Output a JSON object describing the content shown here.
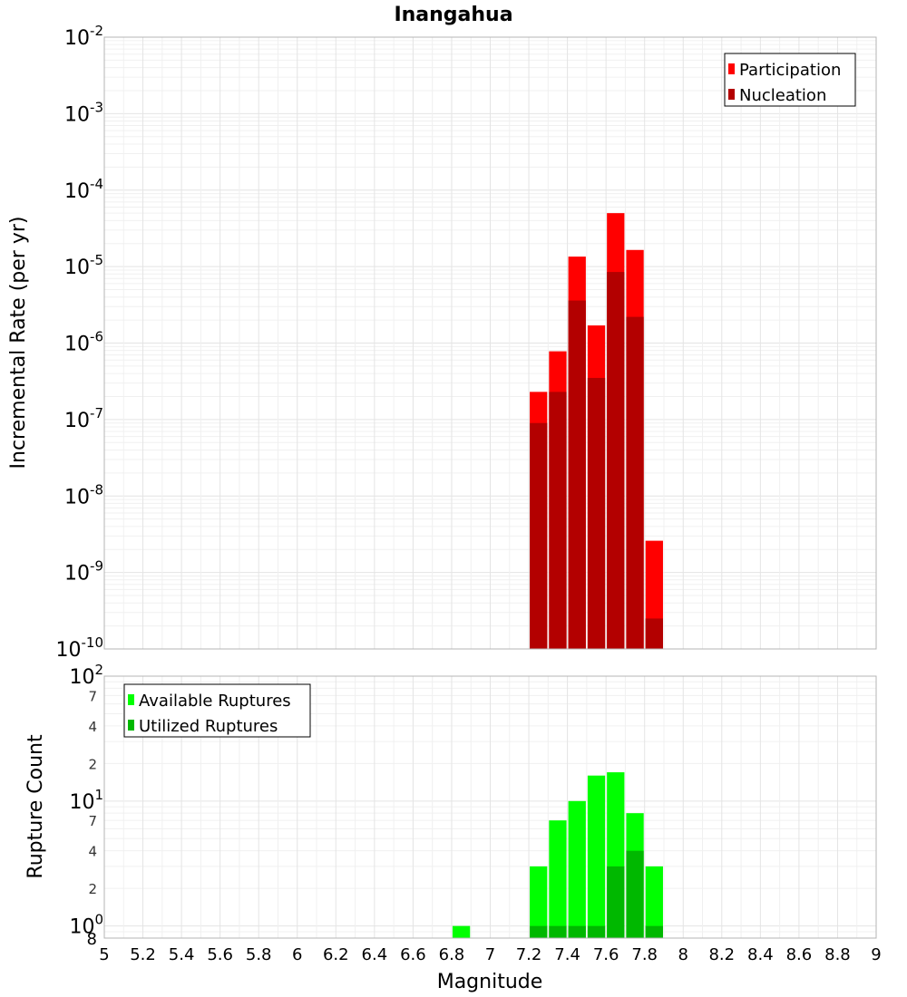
{
  "chart_data": [
    {
      "type": "bar",
      "title": "Inangahua",
      "xlabel": "",
      "ylabel": "Incremental Rate (per yr)",
      "yscale": "log",
      "xlim": [
        5,
        9
      ],
      "ylim": [
        1e-10,
        0.01
      ],
      "grid": true,
      "legend_position": "top-right",
      "bin_width": 0.1,
      "y_tick_labels": [
        {
          "base": "10",
          "exp": "-10"
        },
        {
          "base": "10",
          "exp": "-9"
        },
        {
          "base": "10",
          "exp": "-8"
        },
        {
          "base": "10",
          "exp": "-7"
        },
        {
          "base": "10",
          "exp": "-6"
        },
        {
          "base": "10",
          "exp": "-5"
        },
        {
          "base": "10",
          "exp": "-4"
        },
        {
          "base": "10",
          "exp": "-3"
        },
        {
          "base": "10",
          "exp": "-2"
        }
      ],
      "series": [
        {
          "name": "Participation",
          "color": "#ff0000",
          "x": [
            7.25,
            7.35,
            7.45,
            7.55,
            7.65,
            7.75,
            7.85
          ],
          "values": [
            2.3e-07,
            7.8e-07,
            1.35e-05,
            1.7e-06,
            5e-05,
            1.65e-05,
            2.6e-09
          ]
        },
        {
          "name": "Nucleation",
          "color": "#b30000",
          "x": [
            7.25,
            7.35,
            7.45,
            7.55,
            7.65,
            7.75,
            7.85
          ],
          "values": [
            9e-08,
            2.3e-07,
            3.6e-06,
            3.5e-07,
            8.5e-06,
            2.2e-06,
            2.5e-10
          ]
        }
      ]
    },
    {
      "type": "bar",
      "title": "",
      "xlabel": "Magnitude",
      "ylabel": "Rupture Count",
      "yscale": "log",
      "xlim": [
        5,
        9
      ],
      "ylim": [
        0.8,
        100
      ],
      "grid": true,
      "legend_position": "top-left",
      "bin_width": 0.1,
      "x_ticks": [
        "5",
        "5.2",
        "5.4",
        "5.6",
        "5.8",
        "6",
        "6.2",
        "6.4",
        "6.6",
        "6.8",
        "7",
        "7.2",
        "7.4",
        "7.6",
        "7.8",
        "8",
        "8.2",
        "8.4",
        "8.6",
        "8.8",
        "9"
      ],
      "y_tick_labels": [
        {
          "base": "10",
          "exp": "0"
        },
        {
          "base": "10",
          "exp": "1"
        },
        {
          "base": "10",
          "exp": "2"
        }
      ],
      "y_minor_labels": [
        {
          "label": "8",
          "value": 0.8
        },
        {
          "label": "2",
          "value": 2
        },
        {
          "label": "4",
          "value": 4
        },
        {
          "label": "7",
          "value": 7
        },
        {
          "label": "2",
          "value": 20
        },
        {
          "label": "4",
          "value": 40
        },
        {
          "label": "7",
          "value": 70
        }
      ],
      "series": [
        {
          "name": "Available Ruptures",
          "color": "#00ff00",
          "x": [
            6.85,
            7.25,
            7.35,
            7.45,
            7.55,
            7.65,
            7.75,
            7.85
          ],
          "values": [
            1,
            3,
            7,
            10,
            16,
            17,
            8,
            3
          ]
        },
        {
          "name": "Utilized Ruptures",
          "color": "#00b800",
          "x": [
            7.25,
            7.35,
            7.45,
            7.55,
            7.65,
            7.75,
            7.85
          ],
          "values": [
            1,
            1,
            1,
            1,
            3,
            4,
            1
          ]
        }
      ]
    }
  ]
}
